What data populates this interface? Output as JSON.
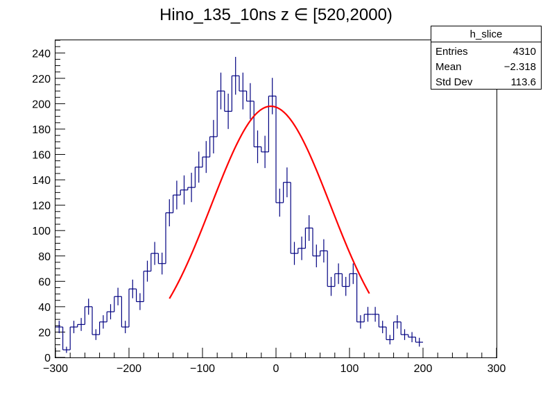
{
  "chart_data": {
    "type": "histogram",
    "title": "Hino_135_10ns z  ∈ [520,2000)",
    "xlabel": "",
    "ylabel": "",
    "xlim": [
      -300,
      300
    ],
    "ylim": [
      0,
      250
    ],
    "grid": false,
    "x_ticks": [
      -300,
      -200,
      -100,
      0,
      100,
      200,
      300
    ],
    "x_tick_labels": [
      "−300",
      "−200",
      "−100",
      "0",
      "100",
      "200",
      "300"
    ],
    "y_ticks": [
      0,
      20,
      40,
      60,
      80,
      100,
      120,
      140,
      160,
      180,
      200,
      220,
      240
    ],
    "y_tick_labels": [
      "0",
      "20",
      "40",
      "60",
      "80",
      "100",
      "120",
      "140",
      "160",
      "180",
      "200",
      "220",
      "240"
    ],
    "bin_width": 10,
    "bin_start": -300,
    "counts": [
      24,
      6,
      24,
      26,
      40,
      18,
      28,
      36,
      48,
      24,
      54,
      44,
      68,
      82,
      74,
      114,
      128,
      132,
      134,
      150,
      158,
      174,
      210,
      194,
      222,
      210,
      202,
      166,
      162,
      206,
      122,
      138,
      82,
      86,
      102,
      80,
      84,
      56,
      66,
      56,
      66,
      28,
      34,
      34,
      24,
      14,
      28,
      18,
      16,
      12
    ],
    "series": [
      {
        "name": "",
        "kind": "histogram",
        "color": "#000080"
      },
      {
        "name": "",
        "kind": "fit",
        "color": "#ff0000"
      }
    ],
    "fit": {
      "type": "gaussian",
      "amplitude": 198,
      "mean": -7,
      "sigma": 81,
      "range": [
        -145,
        128
      ]
    },
    "stats_box": {
      "name": "h_slice",
      "rows": [
        {
          "label": "Entries",
          "value": "4310"
        },
        {
          "label": "Mean",
          "value": "−2.318"
        },
        {
          "label": "Std Dev",
          "value": "113.6"
        }
      ]
    }
  }
}
